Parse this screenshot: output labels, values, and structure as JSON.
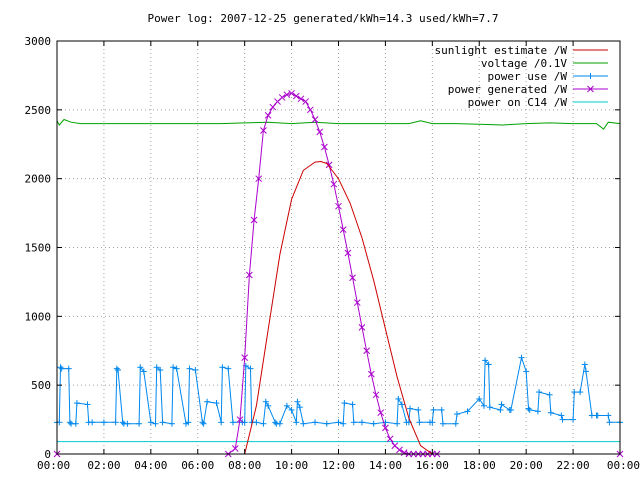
{
  "chart_data": {
    "type": "line",
    "title": "Power log: 2007-12-25 generated/kWh=14.3 used/kWh=7.7",
    "xlabel": "",
    "ylabel": "",
    "xlim": [
      0,
      24
    ],
    "ylim": [
      0,
      3000
    ],
    "x_tick_labels": [
      "00:00",
      "02:00",
      "04:00",
      "06:00",
      "08:00",
      "10:00",
      "12:00",
      "14:00",
      "16:00",
      "18:00",
      "20:00",
      "22:00",
      "00:00"
    ],
    "y_tick_labels": [
      "0",
      "500",
      "1000",
      "1500",
      "2000",
      "2500",
      "3000"
    ],
    "y_tick_values": [
      0,
      500,
      1000,
      1500,
      2000,
      2500,
      3000
    ],
    "grid": "dashed",
    "legend_position": "top-right",
    "series": [
      {
        "name": "sunlight estimate /W",
        "color": "#cc0000",
        "marker": "none",
        "x": [
          8.0,
          8.5,
          9.0,
          9.5,
          10.0,
          10.5,
          11.0,
          11.25,
          11.5,
          12.0,
          12.5,
          13.0,
          13.5,
          14.0,
          14.5,
          15.0,
          15.5,
          16.0
        ],
        "y": [
          0,
          350,
          900,
          1450,
          1850,
          2060,
          2120,
          2125,
          2110,
          2000,
          1820,
          1570,
          1260,
          910,
          560,
          260,
          60,
          0
        ]
      },
      {
        "name": "voltage /0.1V",
        "color": "#00a000",
        "marker": "none",
        "x": [
          0.0,
          0.1,
          0.3,
          0.6,
          1.0,
          2.0,
          3.0,
          4.0,
          5.0,
          6.0,
          7.0,
          8.0,
          9.0,
          10.0,
          11.0,
          12.0,
          13.0,
          14.0,
          15.0,
          15.5,
          16.0,
          17.0,
          18.0,
          19.0,
          20.0,
          21.0,
          22.0,
          23.0,
          23.3,
          23.5,
          24.0
        ],
        "y": [
          2420,
          2390,
          2430,
          2410,
          2400,
          2400,
          2400,
          2400,
          2400,
          2400,
          2400,
          2405,
          2410,
          2400,
          2410,
          2400,
          2400,
          2400,
          2400,
          2420,
          2400,
          2400,
          2395,
          2390,
          2400,
          2405,
          2400,
          2400,
          2360,
          2410,
          2400
        ]
      },
      {
        "name": "power use /W",
        "color": "#0088ee",
        "marker": "plus",
        "x": [
          0.0,
          0.1,
          0.15,
          0.2,
          0.5,
          0.55,
          0.6,
          0.8,
          0.85,
          1.3,
          1.35,
          1.5,
          2.0,
          2.5,
          2.55,
          2.6,
          2.8,
          2.85,
          3.0,
          3.5,
          3.55,
          3.7,
          4.0,
          4.2,
          4.25,
          4.4,
          4.5,
          4.9,
          4.95,
          5.1,
          5.5,
          5.6,
          5.65,
          5.9,
          6.2,
          6.25,
          6.4,
          6.8,
          7.0,
          7.05,
          7.3,
          7.5,
          7.9,
          8.0,
          8.05,
          8.25,
          8.3,
          8.5,
          8.8,
          8.9,
          9.0,
          9.3,
          9.35,
          9.5,
          9.8,
          10.0,
          10.2,
          10.25,
          10.35,
          10.5,
          11.0,
          11.5,
          12.0,
          12.2,
          12.25,
          12.6,
          12.65,
          13.0,
          13.5,
          14.0,
          14.5,
          14.55,
          14.7,
          14.9,
          15.0,
          15.05,
          15.4,
          15.45,
          15.9,
          16.0,
          16.05,
          16.4,
          16.45,
          17.0,
          17.05,
          17.5,
          18.0,
          18.2,
          18.25,
          18.4,
          18.45,
          18.9,
          18.95,
          19.3,
          19.35,
          19.8,
          20.0,
          20.1,
          20.15,
          20.5,
          20.55,
          21.0,
          21.05,
          21.5,
          21.55,
          22.0,
          22.05,
          22.3,
          22.5,
          22.55,
          22.8,
          23.0,
          23.05,
          23.5,
          23.55,
          24.0
        ],
        "y": [
          230,
          230,
          630,
          620,
          620,
          230,
          220,
          220,
          370,
          360,
          230,
          230,
          230,
          230,
          620,
          610,
          230,
          220,
          220,
          220,
          630,
          600,
          230,
          220,
          630,
          610,
          230,
          220,
          630,
          620,
          220,
          230,
          620,
          610,
          230,
          220,
          380,
          370,
          230,
          630,
          620,
          230,
          230,
          230,
          640,
          620,
          230,
          230,
          220,
          380,
          350,
          230,
          220,
          220,
          350,
          320,
          230,
          380,
          340,
          220,
          230,
          220,
          230,
          220,
          370,
          360,
          230,
          230,
          220,
          230,
          220,
          400,
          360,
          230,
          230,
          330,
          320,
          230,
          230,
          230,
          320,
          320,
          220,
          220,
          290,
          310,
          400,
          350,
          680,
          650,
          340,
          320,
          360,
          320,
          320,
          700,
          600,
          330,
          320,
          310,
          450,
          430,
          300,
          280,
          250,
          250,
          450,
          450,
          650,
          600,
          280,
          280,
          280,
          280,
          230,
          230
        ]
      },
      {
        "name": "power generated /W",
        "color": "#aa00cc",
        "marker": "cross",
        "x": [
          0.0,
          7.3,
          7.6,
          7.8,
          8.0,
          8.2,
          8.4,
          8.6,
          8.8,
          9.0,
          9.2,
          9.4,
          9.6,
          9.8,
          10.0,
          10.2,
          10.4,
          10.6,
          10.8,
          11.0,
          11.2,
          11.4,
          11.6,
          11.8,
          12.0,
          12.2,
          12.4,
          12.6,
          12.8,
          13.0,
          13.2,
          13.4,
          13.6,
          13.8,
          14.0,
          14.2,
          14.4,
          14.6,
          14.8,
          15.0,
          15.2,
          15.4,
          15.6,
          15.8,
          16.0,
          16.2,
          24.0
        ],
        "y": [
          0,
          0,
          40,
          250,
          700,
          1300,
          1700,
          2000,
          2350,
          2460,
          2520,
          2560,
          2590,
          2610,
          2620,
          2600,
          2580,
          2560,
          2500,
          2430,
          2340,
          2230,
          2100,
          1960,
          1800,
          1630,
          1460,
          1280,
          1100,
          920,
          750,
          580,
          430,
          300,
          190,
          110,
          60,
          30,
          10,
          0,
          0,
          0,
          0,
          0,
          0,
          0,
          0
        ]
      },
      {
        "name": "power on C14 /W",
        "color": "#00cccc",
        "marker": "none",
        "x": [
          0,
          24
        ],
        "y": [
          90,
          90
        ]
      }
    ]
  }
}
